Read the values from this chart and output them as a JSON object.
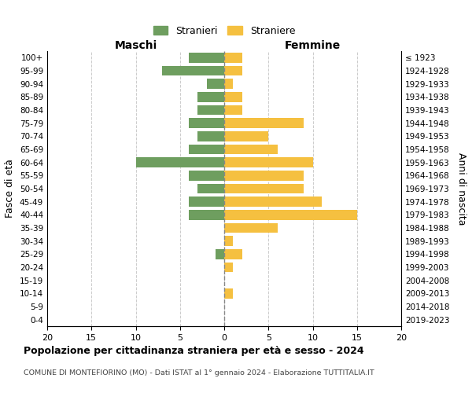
{
  "age_groups": [
    "0-4",
    "5-9",
    "10-14",
    "15-19",
    "20-24",
    "25-29",
    "30-34",
    "35-39",
    "40-44",
    "45-49",
    "50-54",
    "55-59",
    "60-64",
    "65-69",
    "70-74",
    "75-79",
    "80-84",
    "85-89",
    "90-94",
    "95-99",
    "100+"
  ],
  "birth_years": [
    "2019-2023",
    "2014-2018",
    "2009-2013",
    "2004-2008",
    "1999-2003",
    "1994-1998",
    "1989-1993",
    "1984-1988",
    "1979-1983",
    "1974-1978",
    "1969-1973",
    "1964-1968",
    "1959-1963",
    "1954-1958",
    "1949-1953",
    "1944-1948",
    "1939-1943",
    "1934-1938",
    "1929-1933",
    "1924-1928",
    "≤ 1923"
  ],
  "maschi": [
    4,
    7,
    2,
    3,
    3,
    4,
    3,
    4,
    10,
    4,
    3,
    4,
    4,
    0,
    0,
    1,
    0,
    0,
    0,
    0,
    0
  ],
  "femmine": [
    2,
    2,
    1,
    2,
    2,
    9,
    5,
    6,
    10,
    9,
    9,
    11,
    15,
    6,
    1,
    2,
    1,
    0,
    1,
    0,
    0
  ],
  "color_maschi": "#6e9e5f",
  "color_femmine": "#f5c040",
  "title": "Popolazione per cittadinanza straniera per età e sesso - 2024",
  "subtitle": "COMUNE DI MONTEFIORINO (MO) - Dati ISTAT al 1° gennaio 2024 - Elaborazione TUTTITALIA.IT",
  "xlabel_left": "Maschi",
  "xlabel_right": "Femmine",
  "ylabel_left": "Fasce di età",
  "ylabel_right": "Anni di nascita",
  "xlim": 20,
  "legend_stranieri": "Stranieri",
  "legend_straniere": "Straniere",
  "background_color": "#ffffff",
  "grid_color": "#cccccc"
}
